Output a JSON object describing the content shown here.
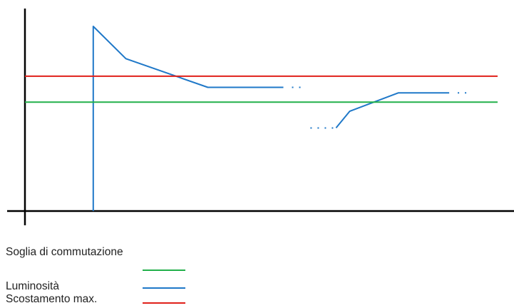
{
  "chart_data": {
    "type": "line",
    "title": "",
    "xlabel": "",
    "ylabel": "",
    "grid": false,
    "legend_position": "bottom-left",
    "xlim": [
      0,
      100
    ],
    "ylim": [
      0,
      100
    ],
    "series": [
      {
        "name": "Luminosità",
        "color": "#1f78c8",
        "segments": [
          {
            "x": [
              14,
              14,
              20.7,
              37.5,
              53
            ],
            "y": [
              0,
              100,
              82.5,
              67,
              67
            ],
            "continues_dotted": true
          },
          {
            "x": [
              63.8,
              66.6,
              76.6,
              87
            ],
            "y": [
              45,
              54,
              64,
              64
            ],
            "preceded_dotted": true,
            "continues_dotted": true
          }
        ]
      },
      {
        "name": "Soglia di commutazione",
        "color": "#22b04a",
        "constant_y": 59
      },
      {
        "name": "Scostamento max.",
        "color": "#e0201a",
        "constant_y": 73
      }
    ]
  },
  "legend": {
    "items": [
      {
        "label": "Soglia di commutazione",
        "color": "#22b04a"
      },
      {
        "label": "Luminosità",
        "color": "#1f78c8"
      },
      {
        "label": "Scostamento max.",
        "color": "#e0201a"
      }
    ]
  }
}
